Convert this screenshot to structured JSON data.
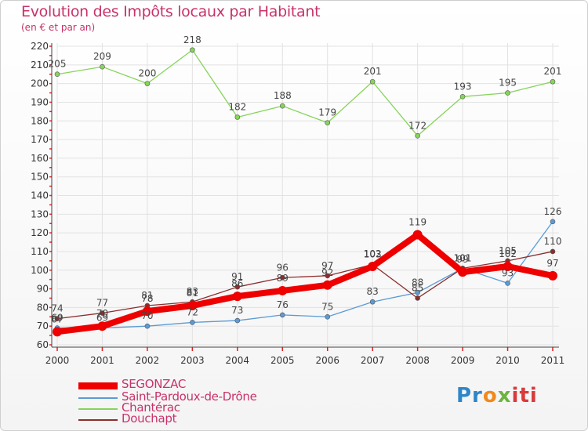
{
  "chart_data": {
    "type": "line",
    "title": "Evolution des Impôts locaux par Habitant",
    "subtitle": "(en € et par an)",
    "xlabel": "",
    "ylabel": "",
    "ylim": [
      60,
      220
    ],
    "yticks": [
      60,
      70,
      80,
      90,
      100,
      110,
      120,
      130,
      140,
      150,
      160,
      170,
      180,
      190,
      200,
      210,
      220
    ],
    "categories": [
      "2000",
      "2001",
      "2002",
      "2003",
      "2004",
      "2005",
      "2006",
      "2007",
      "2008",
      "2009",
      "2010",
      "2011"
    ],
    "grid": true,
    "legend_position": "bottom-left",
    "series": [
      {
        "name": "SEGONZAC",
        "color": "#ee0000",
        "values": [
          67,
          70,
          78,
          81,
          86,
          89,
          92,
          102,
          119,
          99,
          102,
          97
        ]
      },
      {
        "name": "Saint-Pardoux-de-Drône",
        "color": "#5b9bd5",
        "values": [
          69,
          69,
          70,
          72,
          73,
          76,
          75,
          83,
          88,
          101,
          93,
          126
        ]
      },
      {
        "name": "Chantérac",
        "color": "#86d45a",
        "values": [
          205,
          209,
          200,
          218,
          182,
          188,
          179,
          201,
          172,
          193,
          195,
          201
        ]
      },
      {
        "name": "Douchapt",
        "color": "#8b2e2e",
        "values": [
          74,
          77,
          81,
          83,
          91,
          96,
          97,
          103,
          85,
          101,
          105,
          110
        ]
      }
    ]
  },
  "brand": {
    "p1": "Pr",
    "p2": "o",
    "p3": "x",
    "p4": "iti"
  }
}
